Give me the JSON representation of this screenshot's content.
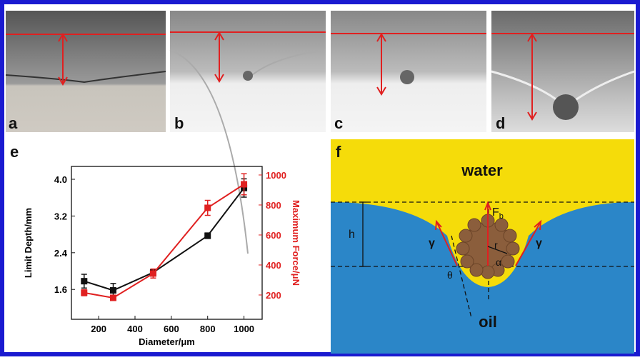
{
  "panels": {
    "a": "a",
    "b": "b",
    "c": "c",
    "d": "d",
    "e": "e",
    "f": "f"
  },
  "diagram": {
    "water": "water",
    "oil": "oil",
    "h": "h",
    "fb": "F",
    "fb_sub": "b",
    "gamma_left": "γ",
    "gamma_right": "γ",
    "r": "r",
    "alpha": "α",
    "theta": "θ"
  },
  "chart_data": {
    "type": "line",
    "xlabel": "Diameter/μm",
    "ylabel": "Limit Depth/mm",
    "y2label": "Maximum Force/μN",
    "x": [
      120,
      280,
      500,
      800,
      1000
    ],
    "xlim": [
      50,
      1100
    ],
    "xticks": [
      200,
      400,
      600,
      800,
      1000
    ],
    "ylim": [
      0.95,
      4.28
    ],
    "yticks": [
      1.6,
      2.4,
      3.2,
      {
        "value": 4.0,
        "label": "4.0"
      }
    ],
    "y2lim": [
      38,
      1057
    ],
    "y2ticks": [
      200,
      400,
      600,
      800,
      1000
    ],
    "series": [
      {
        "color": "#111111",
        "values": [
          1.78,
          1.58,
          1.97,
          2.77,
          3.81
        ],
        "errors": [
          0.15,
          0.15,
          0.05,
          0.06,
          0.2
        ]
      },
      {
        "color": "#e02020",
        "axis": "y2",
        "values": [
          215,
          181,
          343,
          781,
          938
        ],
        "errors": [
          20,
          15,
          30,
          50,
          70
        ]
      }
    ]
  }
}
